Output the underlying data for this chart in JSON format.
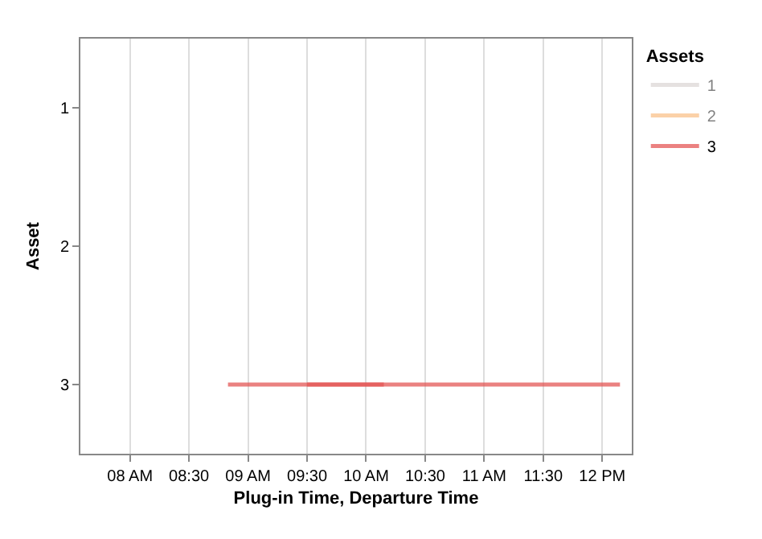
{
  "chart_data": {
    "type": "line",
    "xlabel": "Plug-in Time, Departure Time",
    "ylabel": "Asset",
    "legend_title": "Assets",
    "legend": "top right",
    "grid": "x",
    "marker": "none",
    "line_style": "solid",
    "xlim": [
      7.58,
      12.25
    ],
    "xticks": [
      {
        "value": 8,
        "label": "08 AM"
      },
      {
        "value": 8.5,
        "label": "08:30"
      },
      {
        "value": 9,
        "label": "09 AM"
      },
      {
        "value": 9.5,
        "label": "09:30"
      },
      {
        "value": 10,
        "label": "10 AM"
      },
      {
        "value": 10.5,
        "label": "10:30"
      },
      {
        "value": 11,
        "label": "11 AM"
      },
      {
        "value": 11.5,
        "label": "11:30"
      },
      {
        "value": 12,
        "label": "12 PM"
      }
    ],
    "ylim": [
      3.5,
      0.5
    ],
    "yticks": [
      1,
      2,
      3
    ],
    "series": [
      {
        "name": "1",
        "color": "#bab0ac"
      },
      {
        "name": "2",
        "color": "#f58518"
      },
      {
        "name": "3",
        "color": "#e45756",
        "x": [
          8.83,
          12.15
        ],
        "values": [
          3,
          3
        ]
      },
      {
        "color": "#e45756",
        "x": [
          9.5,
          10.15
        ],
        "values": [
          3,
          3
        ]
      }
    ]
  }
}
